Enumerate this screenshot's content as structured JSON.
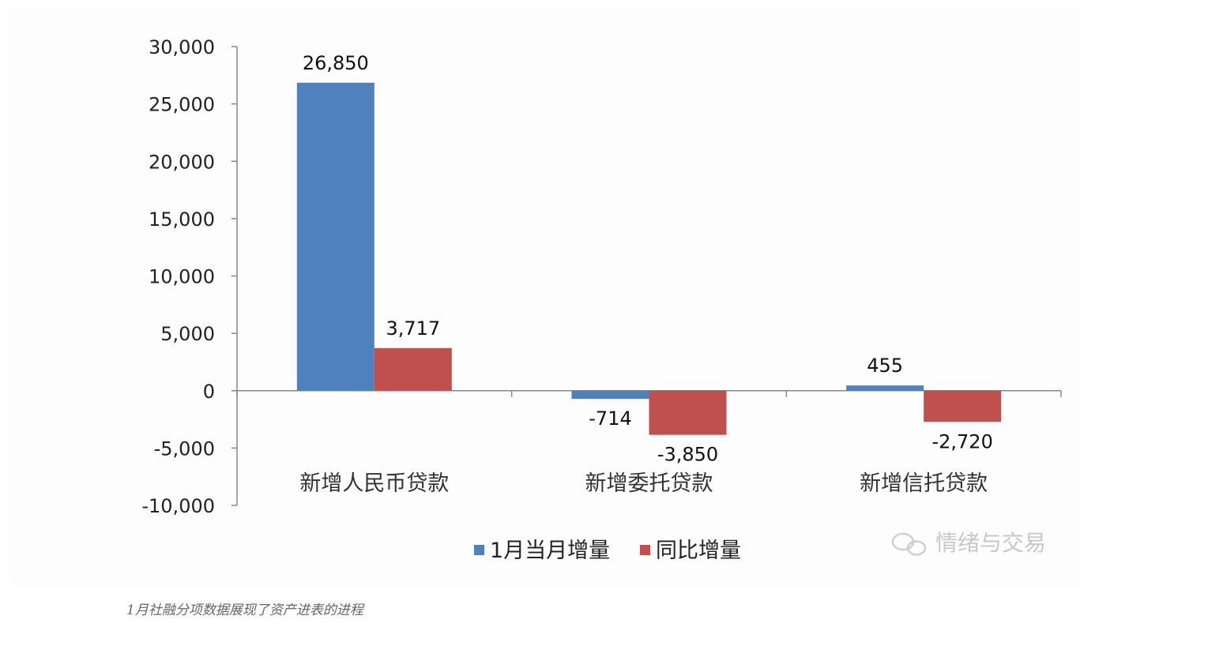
{
  "chart_data": {
    "type": "bar",
    "categories": [
      "新增人民币贷款",
      "新增委托贷款",
      "新增信托贷款"
    ],
    "series": [
      {
        "name": "1月当月增量",
        "values": [
          26850,
          -714,
          455
        ],
        "labels": [
          "26,850",
          "-714",
          "455"
        ],
        "color": "#4f81bd"
      },
      {
        "name": "同比增量",
        "values": [
          3717,
          -3850,
          -2720
        ],
        "labels": [
          "3,717",
          "-3,850",
          "-2,720"
        ],
        "color": "#c0504d"
      }
    ],
    "ylim": [
      -10000,
      30000
    ],
    "yticks": [
      30000,
      25000,
      20000,
      15000,
      10000,
      5000,
      0,
      -5000,
      -10000
    ],
    "ytick_labels": [
      "30,000",
      "25,000",
      "20,000",
      "15,000",
      "10,000",
      "5,000",
      "0",
      "-5,000",
      "-10,000"
    ],
    "legend_position": "bottom",
    "grid": false
  },
  "watermark": "情绪与交易",
  "caption": "1月社融分项数据展现了资产进表的进程"
}
